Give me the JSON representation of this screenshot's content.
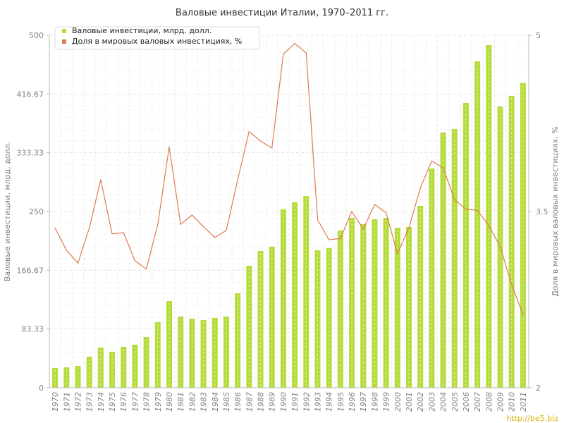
{
  "chart_data": {
    "type": "bar",
    "title": "Валовые инвестиции Италии, 1970–2011 гг.",
    "ylabel": "Валовые инвестиции, млрд. долл.",
    "y2label": "Доля в мировых валовых инвестициях, %",
    "ylim": [
      0,
      500
    ],
    "y2lim": [
      2,
      5
    ],
    "yticks": [
      "0",
      "83.33",
      "166.67",
      "250",
      "333.33",
      "416.67",
      "500"
    ],
    "y2ticks": [
      "2",
      "3.5",
      "5"
    ],
    "grid": true,
    "legend_position": "top-left",
    "categories": [
      "1970",
      "1971",
      "1972",
      "1973",
      "1974",
      "1975",
      "1976",
      "1977",
      "1978",
      "1979",
      "1980",
      "1981",
      "1982",
      "1983",
      "1984",
      "1985",
      "1986",
      "1987",
      "1988",
      "1989",
      "1990",
      "1991",
      "1992",
      "1993",
      "1994",
      "1995",
      "1996",
      "1997",
      "1998",
      "1999",
      "2000",
      "2001",
      "2002",
      "2003",
      "2004",
      "2005",
      "2006",
      "2007",
      "2008",
      "2009",
      "2010",
      "2011"
    ],
    "series": [
      {
        "name": "Валовые инвестиции, млрд. долл.",
        "type": "bar",
        "axis": "left",
        "color": "#b5dc3c",
        "values": [
          28,
          29,
          31,
          44,
          57,
          51,
          58,
          61,
          72,
          93,
          123,
          101,
          98,
          96,
          99,
          101,
          134,
          173,
          194,
          200,
          253,
          263,
          272,
          195,
          198,
          223,
          241,
          232,
          239,
          241,
          227,
          228,
          258,
          311,
          362,
          367,
          404,
          463,
          486,
          399,
          414,
          432
        ]
      },
      {
        "name": "Доля в мировых валовых инвестициях, %",
        "type": "line",
        "axis": "right",
        "color": "#e07a4f",
        "values": [
          3.36,
          3.17,
          3.06,
          3.36,
          3.77,
          3.31,
          3.32,
          3.08,
          3.01,
          3.39,
          4.05,
          3.39,
          3.47,
          3.37,
          3.28,
          3.34,
          3.77,
          4.18,
          4.1,
          4.04,
          4.84,
          4.93,
          4.85,
          3.43,
          3.26,
          3.27,
          3.5,
          3.35,
          3.56,
          3.49,
          3.14,
          3.36,
          3.7,
          3.93,
          3.87,
          3.6,
          3.52,
          3.51,
          3.38,
          3.2,
          2.88,
          2.62
        ]
      }
    ]
  },
  "watermark": "http://be5.biz"
}
